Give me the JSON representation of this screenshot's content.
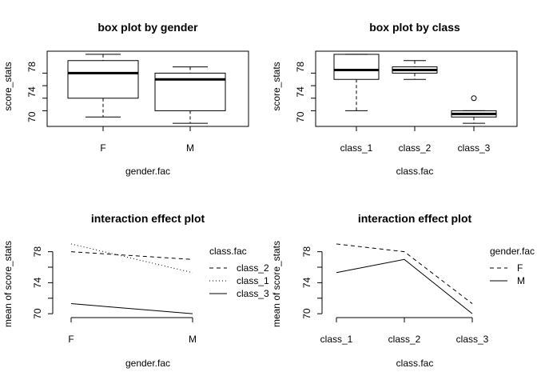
{
  "chart_data": [
    {
      "type": "box",
      "title": "box plot by gender",
      "xlabel": "gender.fac",
      "ylabel": "score_stats",
      "categories": [
        "F",
        "M"
      ],
      "ylim": [
        68.5,
        80.5
      ],
      "yticks": [
        70,
        74,
        78
      ],
      "boxes": [
        {
          "whisker_low": 70,
          "q1": 73,
          "median": 77,
          "q3": 79,
          "whisker_high": 80,
          "outliers": []
        },
        {
          "whisker_low": 69,
          "q1": 71,
          "median": 76,
          "q3": 77,
          "whisker_high": 78,
          "outliers": []
        }
      ]
    },
    {
      "type": "box",
      "title": "box plot by class",
      "xlabel": "class.fac",
      "ylabel": "score_stats",
      "categories": [
        "class_1",
        "class_2",
        "class_3"
      ],
      "ylim": [
        68.5,
        80.5
      ],
      "yticks": [
        70,
        74,
        78
      ],
      "boxes": [
        {
          "whisker_low": 71,
          "q1": 76,
          "median": 77.5,
          "q3": 80,
          "whisker_high": 80,
          "outliers": []
        },
        {
          "whisker_low": 76,
          "q1": 77,
          "median": 77.5,
          "q3": 78,
          "whisker_high": 79,
          "outliers": []
        },
        {
          "whisker_low": 69,
          "q1": 70,
          "median": 70.5,
          "q3": 71,
          "whisker_high": 71,
          "outliers": [
            73
          ]
        }
      ]
    },
    {
      "type": "line",
      "title": "interaction effect plot",
      "xlabel": "gender.fac",
      "ylabel": "mean of  score_stats",
      "categories": [
        "F",
        "M"
      ],
      "ylim": [
        69.5,
        79.2
      ],
      "yticks": [
        70,
        74,
        78
      ],
      "legend_title": "class.fac",
      "legend_placement": "right",
      "series": [
        {
          "name": "class_2",
          "style": "dashed",
          "values": [
            78,
            77
          ]
        },
        {
          "name": "class_1",
          "style": "dotted",
          "values": [
            79,
            75.3
          ]
        },
        {
          "name": "class_3",
          "style": "solid",
          "values": [
            71.3,
            70
          ]
        }
      ]
    },
    {
      "type": "line",
      "title": "interaction effect plot",
      "xlabel": "class.fac",
      "ylabel": "mean of  score_stats",
      "categories": [
        "class_1",
        "class_2",
        "class_3"
      ],
      "ylim": [
        69.5,
        79.2
      ],
      "yticks": [
        70,
        74,
        78
      ],
      "legend_title": "gender.fac",
      "legend_placement": "right",
      "series": [
        {
          "name": "F",
          "style": "dashed",
          "values": [
            79,
            78,
            71.3
          ]
        },
        {
          "name": "M",
          "style": "solid",
          "values": [
            75.3,
            77,
            70
          ]
        }
      ]
    }
  ]
}
